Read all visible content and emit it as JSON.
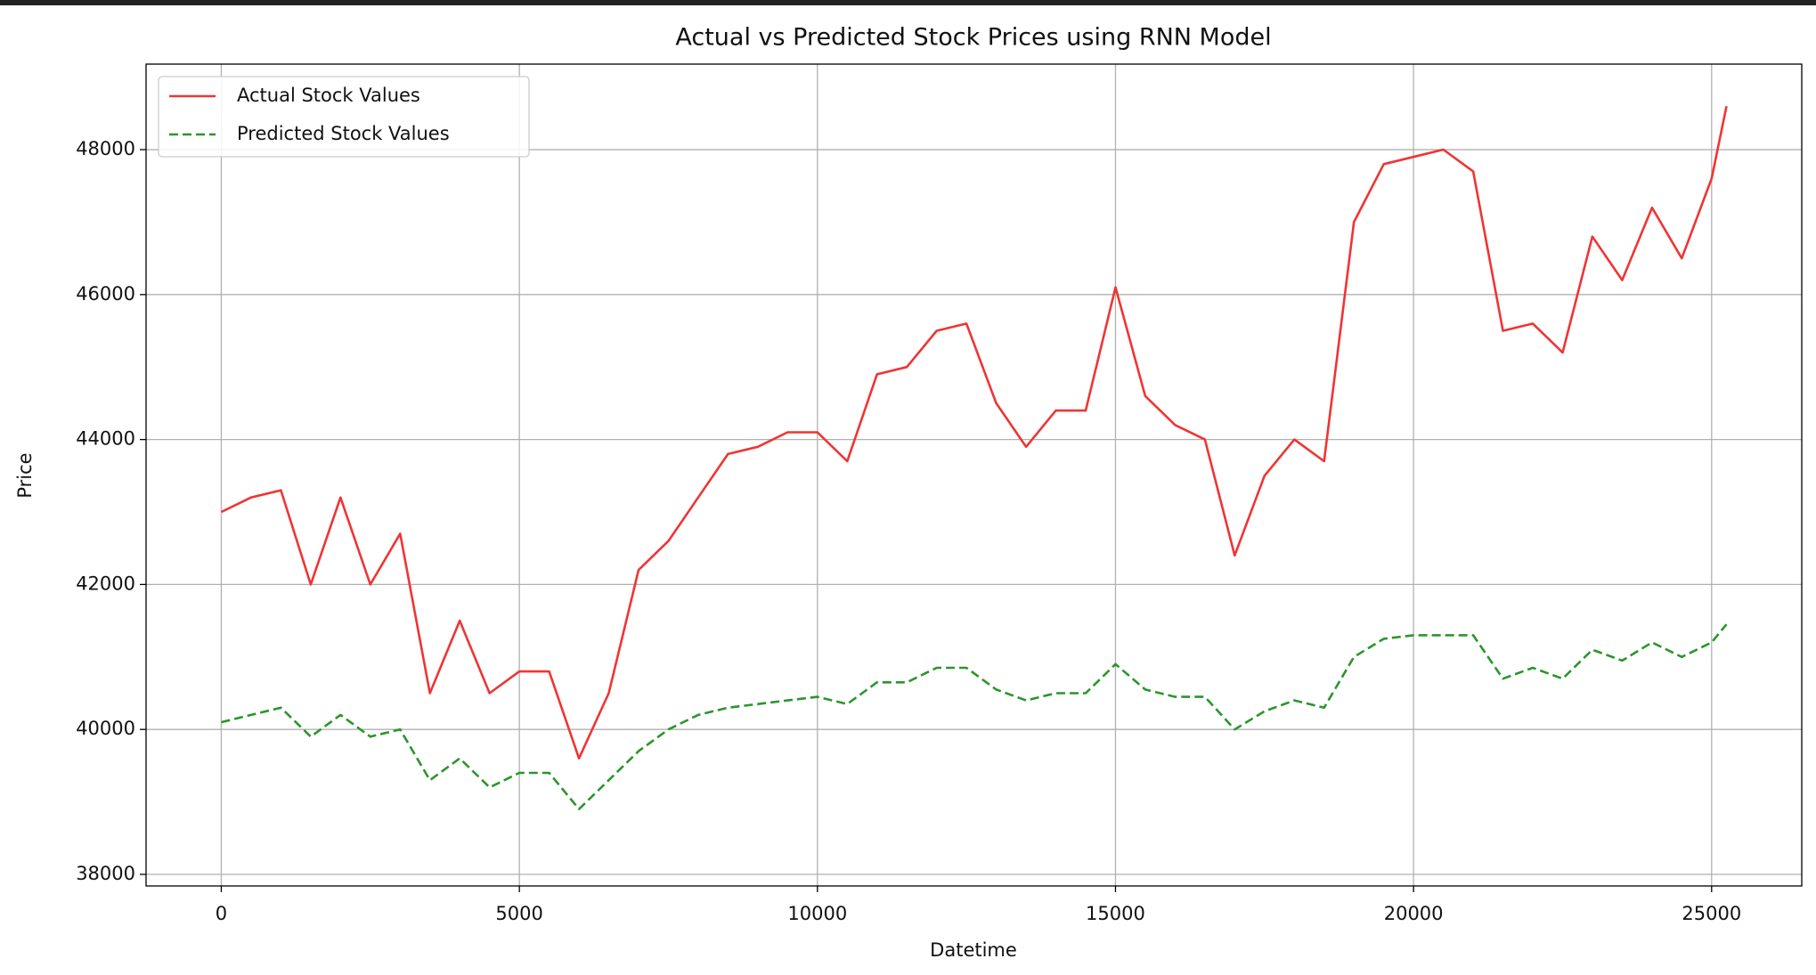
{
  "chart_data": {
    "type": "line",
    "title": "Actual vs Predicted Stock Prices using RNN Model",
    "x_label": "Datetime",
    "y_label": "Price",
    "x": [
      0,
      500,
      1000,
      1500,
      2000,
      2500,
      3000,
      3500,
      4000,
      4500,
      5000,
      5500,
      6000,
      6500,
      7000,
      7500,
      8000,
      8500,
      9000,
      9500,
      10000,
      10500,
      11000,
      11500,
      12000,
      12500,
      13000,
      13500,
      14000,
      14500,
      15000,
      15500,
      16000,
      16500,
      17000,
      17500,
      18000,
      18500,
      19000,
      19500,
      20000,
      20500,
      21000,
      21500,
      22000,
      22500,
      23000,
      23500,
      24000,
      24500,
      25000,
      25250
    ],
    "series": [
      {
        "name": "Actual Stock Values",
        "color": "#f03434",
        "linestyle": "solid",
        "values": [
          43000,
          43200,
          43300,
          42000,
          43200,
          42000,
          42700,
          40500,
          41500,
          40500,
          40800,
          40800,
          39600,
          40500,
          42200,
          42600,
          43200,
          43800,
          43900,
          44100,
          44100,
          43700,
          44900,
          45000,
          45500,
          45600,
          44500,
          43900,
          44400,
          44400,
          46100,
          44600,
          44200,
          44000,
          42400,
          43500,
          44000,
          43700,
          47000,
          47800,
          47900,
          48000,
          47700,
          45500,
          45600,
          45200,
          46800,
          46200,
          47200,
          46500,
          47600,
          48600
        ]
      },
      {
        "name": "Predicted Stock Values",
        "color": "#2b962b",
        "linestyle": "dashed",
        "values": [
          40100,
          40200,
          40300,
          39900,
          40200,
          39900,
          40000,
          39300,
          39600,
          39200,
          39400,
          39400,
          38900,
          39300,
          39700,
          40000,
          40200,
          40300,
          40350,
          40400,
          40450,
          40350,
          40650,
          40650,
          40850,
          40850,
          40550,
          40400,
          40500,
          40500,
          40900,
          40550,
          40450,
          40450,
          40000,
          40250,
          40400,
          40300,
          41000,
          41250,
          41300,
          41300,
          41300,
          40700,
          40850,
          40700,
          41100,
          40950,
          41200,
          41000,
          41200,
          41450
        ]
      }
    ],
    "xlim": [
      -1262,
      26512
    ],
    "ylim": [
      37840,
      49180
    ],
    "xticks": [
      0,
      5000,
      10000,
      15000,
      20000,
      25000
    ],
    "yticks": [
      38000,
      40000,
      42000,
      44000,
      46000,
      48000
    ],
    "grid": true,
    "legend": "upper left"
  }
}
